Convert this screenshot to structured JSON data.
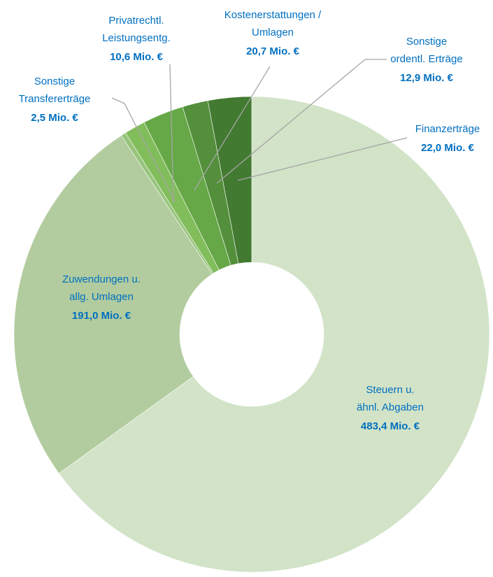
{
  "chart_data": {
    "type": "donut",
    "categories": [
      "Steuern u.\nähnl. Abgaben",
      "Zuwendungen u.\nallg. Umlagen",
      "Sonstige\nTransfererträge",
      "Privatrechtl.\nLeistungsentg.",
      "Kostenerstattungen /\nUmlagen",
      "Sonstige\nordentl. Erträge",
      "Finanzerträge"
    ],
    "values": [
      483.4,
      191.0,
      2.5,
      10.6,
      20.7,
      12.9,
      22.0
    ],
    "value_labels": [
      "483,4 Mio. €",
      "191,0 Mio. €",
      "2,5 Mio. €",
      "10,6 Mio. €",
      "20,7 Mio. €",
      "12,9 Mio. €",
      "22,0 Mio. €"
    ],
    "colors": [
      "#d2e3c7",
      "#b2cc9f",
      "#98c47c",
      "#82bd5c",
      "#66a847",
      "#548f3c",
      "#427a31"
    ]
  }
}
